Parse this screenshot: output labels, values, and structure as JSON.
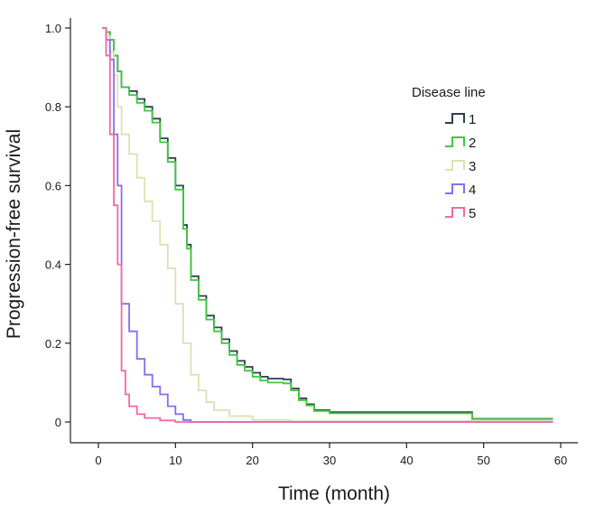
{
  "chart_data": {
    "type": "line",
    "step": true,
    "title": "",
    "xlabel": "Time (month)",
    "ylabel": "Progression-free survival",
    "xlim": [
      0,
      60
    ],
    "ylim": [
      0,
      1.0
    ],
    "x_ticks": [
      0,
      10,
      20,
      30,
      40,
      50,
      60
    ],
    "x_tick_labels": [
      "0",
      "10",
      "20",
      "30",
      "40",
      "50",
      "60"
    ],
    "y_ticks": [
      0,
      0.2,
      0.4,
      0.6,
      0.8,
      1.0
    ],
    "y_tick_labels": [
      "0",
      "0.2",
      "0.4",
      "0.6",
      "0.8",
      "1.0"
    ],
    "grid": false,
    "legend": {
      "title": "Disease line",
      "position": "right"
    },
    "series": [
      {
        "name": "1",
        "color": "#2f3f4f",
        "points": [
          [
            0.5,
            1.0
          ],
          [
            1.0,
            0.99
          ],
          [
            1.5,
            0.97
          ],
          [
            2.0,
            0.93
          ],
          [
            2.5,
            0.89
          ],
          [
            3.0,
            0.85
          ],
          [
            4.0,
            0.84
          ],
          [
            5.0,
            0.82
          ],
          [
            6.0,
            0.8
          ],
          [
            7.0,
            0.77
          ],
          [
            8.0,
            0.72
          ],
          [
            9.0,
            0.67
          ],
          [
            10.0,
            0.6
          ],
          [
            11.0,
            0.5
          ],
          [
            11.5,
            0.45
          ],
          [
            12.0,
            0.37
          ],
          [
            13.0,
            0.32
          ],
          [
            14.0,
            0.27
          ],
          [
            15.0,
            0.24
          ],
          [
            16.0,
            0.21
          ],
          [
            17.0,
            0.18
          ],
          [
            18.0,
            0.155
          ],
          [
            19.0,
            0.14
          ],
          [
            20.0,
            0.125
          ],
          [
            21.0,
            0.115
          ],
          [
            22.0,
            0.11
          ],
          [
            24.0,
            0.108
          ],
          [
            25.0,
            0.085
          ],
          [
            26.0,
            0.06
          ],
          [
            27.0,
            0.045
          ],
          [
            28.0,
            0.03
          ],
          [
            30.0,
            0.025
          ],
          [
            40.0,
            0.025
          ],
          [
            48.0,
            0.025
          ],
          [
            48.5,
            0.008
          ],
          [
            59.0,
            0.008
          ]
        ]
      },
      {
        "name": "2",
        "color": "#3ec83e",
        "points": [
          [
            0.5,
            1.0
          ],
          [
            1.0,
            0.99
          ],
          [
            1.5,
            0.97
          ],
          [
            2.0,
            0.93
          ],
          [
            2.5,
            0.89
          ],
          [
            3.0,
            0.85
          ],
          [
            4.0,
            0.83
          ],
          [
            5.0,
            0.81
          ],
          [
            6.0,
            0.79
          ],
          [
            7.0,
            0.76
          ],
          [
            8.0,
            0.71
          ],
          [
            9.0,
            0.66
          ],
          [
            10.0,
            0.59
          ],
          [
            11.0,
            0.49
          ],
          [
            11.5,
            0.44
          ],
          [
            12.0,
            0.36
          ],
          [
            13.0,
            0.31
          ],
          [
            14.0,
            0.26
          ],
          [
            15.0,
            0.23
          ],
          [
            16.0,
            0.2
          ],
          [
            17.0,
            0.17
          ],
          [
            18.0,
            0.145
          ],
          [
            19.0,
            0.13
          ],
          [
            20.0,
            0.115
          ],
          [
            21.0,
            0.105
          ],
          [
            22.0,
            0.1
          ],
          [
            24.0,
            0.098
          ],
          [
            25.0,
            0.08
          ],
          [
            26.0,
            0.055
          ],
          [
            27.0,
            0.042
          ],
          [
            28.0,
            0.028
          ],
          [
            30.0,
            0.022
          ],
          [
            40.0,
            0.022
          ],
          [
            48.0,
            0.022
          ],
          [
            48.5,
            0.007
          ],
          [
            59.0,
            0.007
          ]
        ]
      },
      {
        "name": "3",
        "color": "#d9e2b4",
        "points": [
          [
            0.5,
            1.0
          ],
          [
            1.0,
            0.98
          ],
          [
            1.5,
            0.94
          ],
          [
            2.0,
            0.88
          ],
          [
            2.5,
            0.8
          ],
          [
            3.0,
            0.73
          ],
          [
            4.0,
            0.68
          ],
          [
            5.0,
            0.62
          ],
          [
            6.0,
            0.56
          ],
          [
            7.0,
            0.51
          ],
          [
            8.0,
            0.45
          ],
          [
            9.0,
            0.39
          ],
          [
            10.0,
            0.3
          ],
          [
            11.0,
            0.2
          ],
          [
            12.0,
            0.12
          ],
          [
            13.0,
            0.08
          ],
          [
            14.0,
            0.05
          ],
          [
            15.0,
            0.03
          ],
          [
            17.0,
            0.015
          ],
          [
            20.0,
            0.005
          ],
          [
            25.0,
            0.002
          ],
          [
            59.0,
            0.002
          ]
        ]
      },
      {
        "name": "4",
        "color": "#8a6cf0",
        "points": [
          [
            0.5,
            1.0
          ],
          [
            1.0,
            0.97
          ],
          [
            1.5,
            0.92
          ],
          [
            2.0,
            0.73
          ],
          [
            2.5,
            0.6
          ],
          [
            3.0,
            0.3
          ],
          [
            4.0,
            0.23
          ],
          [
            5.0,
            0.16
          ],
          [
            6.0,
            0.12
          ],
          [
            7.0,
            0.09
          ],
          [
            8.0,
            0.07
          ],
          [
            9.0,
            0.04
          ],
          [
            10.0,
            0.02
          ],
          [
            11.0,
            0.005
          ],
          [
            12.0,
            0.0
          ],
          [
            59.0,
            0.0
          ]
        ]
      },
      {
        "name": "5",
        "color": "#f06aa6",
        "points": [
          [
            0.5,
            1.0
          ],
          [
            1.0,
            0.93
          ],
          [
            1.5,
            0.73
          ],
          [
            2.0,
            0.55
          ],
          [
            2.5,
            0.4
          ],
          [
            3.0,
            0.13
          ],
          [
            3.5,
            0.07
          ],
          [
            4.0,
            0.04
          ],
          [
            5.0,
            0.02
          ],
          [
            6.0,
            0.01
          ],
          [
            8.0,
            0.004
          ],
          [
            10.0,
            0.0
          ],
          [
            59.0,
            0.0
          ]
        ]
      }
    ]
  }
}
